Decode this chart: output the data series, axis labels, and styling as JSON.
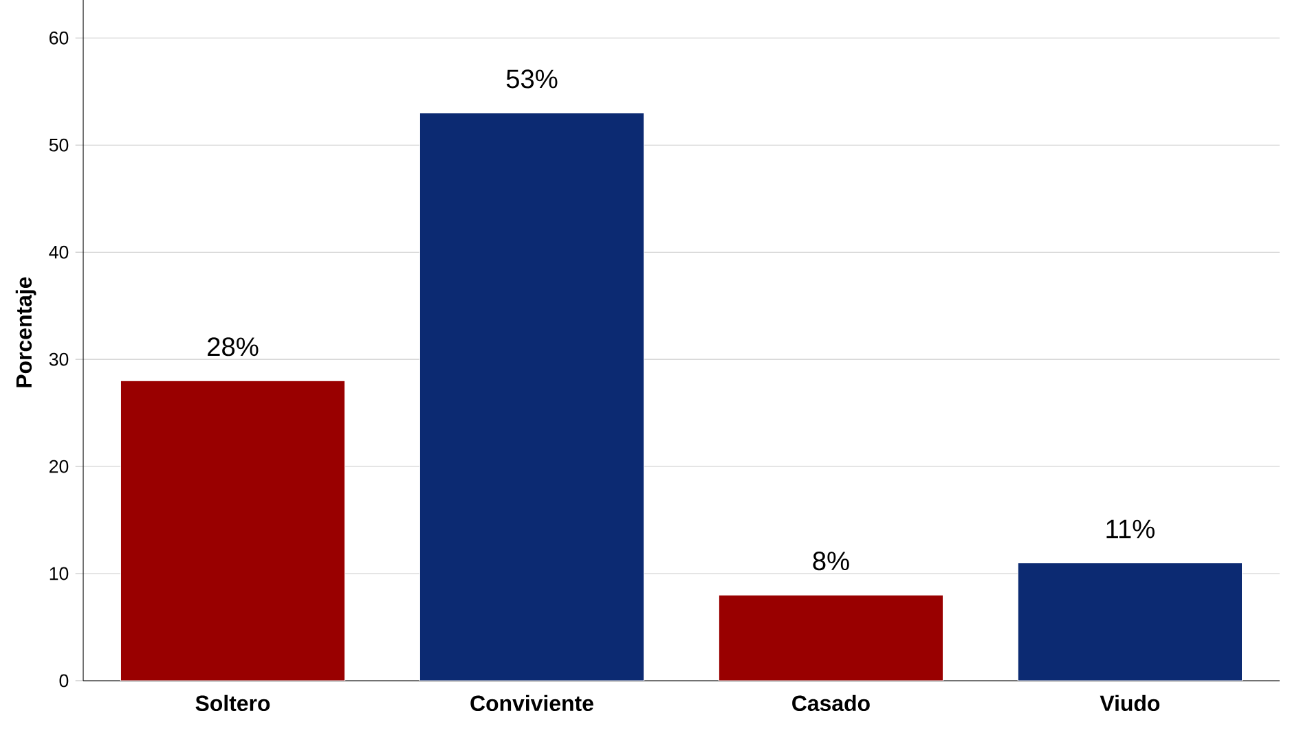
{
  "chart_data": {
    "type": "bar",
    "ylabel": "Porcentaje",
    "categories": [
      "Soltero",
      "Conviviente",
      "Casado",
      "Viudo"
    ],
    "values": [
      28,
      53,
      8,
      11
    ],
    "value_labels": [
      "28%",
      "53%",
      "8%",
      "11%"
    ],
    "colors": [
      "#990000",
      "#0c2a72",
      "#990000",
      "#0c2a72"
    ],
    "ylim": [
      0,
      65
    ],
    "yticks": [
      0,
      10,
      20,
      30,
      40,
      50,
      60
    ],
    "grid": "y"
  }
}
